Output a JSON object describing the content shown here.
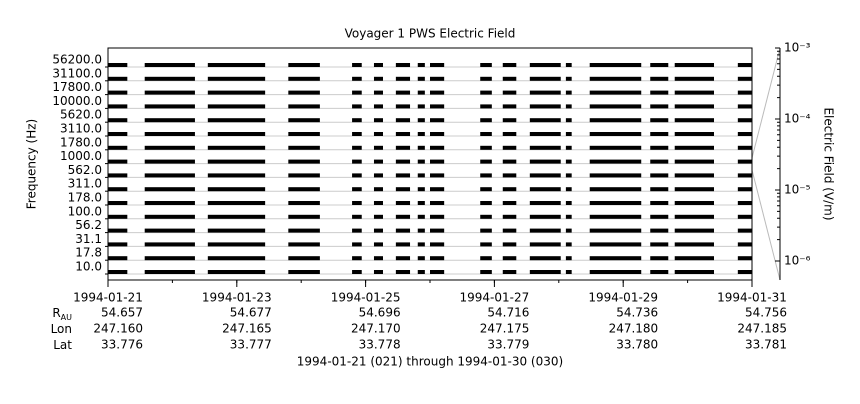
{
  "chart_data": {
    "type": "coverage",
    "title": "Voyager 1 PWS Electric Field",
    "ylabel": "Frequency (Hz)",
    "y2label": "Electric Field (V/m)",
    "footer": "1994-01-21 (021) through 1994-01-30 (030)",
    "categories": [
      "56200.0",
      "31100.0",
      "17800.0",
      "10000.0",
      "5620.0",
      "3110.0",
      "1780.0",
      "1000.0",
      "562.0",
      "311.0",
      "178.0",
      "100.0",
      "56.2",
      "31.1",
      "17.8",
      "10.0"
    ],
    "color": "#000000",
    "xlim": [
      0,
      10
    ],
    "xticks": [
      {
        "value": 0,
        "label": "1994-01-21"
      },
      {
        "value": 2,
        "label": "1994-01-23"
      },
      {
        "value": 4,
        "label": "1994-01-25"
      },
      {
        "value": 6,
        "label": "1994-01-27"
      },
      {
        "value": 8,
        "label": "1994-01-29"
      },
      {
        "value": 10,
        "label": "1994-01-31"
      }
    ],
    "segments": [
      [
        0,
        0.3
      ],
      [
        0.57,
        1.35
      ],
      [
        1.55,
        2.44
      ],
      [
        2.8,
        3.29
      ],
      [
        3.79,
        3.94
      ],
      [
        4.13,
        4.27
      ],
      [
        4.47,
        4.69
      ],
      [
        4.81,
        4.92
      ],
      [
        5.0,
        5.22
      ],
      [
        5.78,
        5.96
      ],
      [
        6.13,
        6.34
      ],
      [
        6.55,
        7.03
      ],
      [
        7.11,
        7.2
      ],
      [
        7.48,
        8.28
      ],
      [
        8.42,
        8.7
      ],
      [
        8.8,
        9.41
      ],
      [
        9.78,
        10.0
      ]
    ],
    "y2log": true,
    "y2lim": [
      5.4e-07,
      0.001
    ],
    "y2ticks": [
      {
        "value": 0.001,
        "label": "10⁻³"
      },
      {
        "value": 0.0001,
        "label": "10⁻⁴"
      },
      {
        "value": 1e-05,
        "label": "10⁻⁵"
      },
      {
        "value": 1e-06,
        "label": "10⁻⁶"
      }
    ],
    "ephemeris": [
      {
        "name": "R",
        "sub": "AU",
        "values": [
          "54.657",
          "54.677",
          "54.696",
          "54.716",
          "54.736",
          "54.756"
        ]
      },
      {
        "name": "Lon",
        "values": [
          "247.160",
          "247.165",
          "247.170",
          "247.175",
          "247.180",
          "247.185"
        ]
      },
      {
        "name": "Lat",
        "values": [
          "33.776",
          "33.777",
          "33.778",
          "33.779",
          "33.780",
          "33.781"
        ]
      }
    ]
  }
}
